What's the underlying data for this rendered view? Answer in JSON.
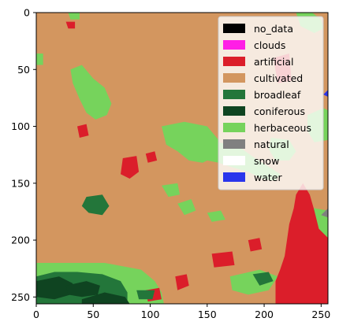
{
  "chart_data": {
    "type": "heatmap",
    "title": "",
    "xlabel": "",
    "ylabel": "",
    "xlim": [
      0,
      256
    ],
    "ylim": [
      256,
      0
    ],
    "x_ticks": [
      0,
      50,
      100,
      150,
      200,
      250
    ],
    "y_ticks": [
      0,
      50,
      100,
      150,
      200,
      250
    ],
    "grid": false,
    "legend_placement": "top-right",
    "background_class": "cultivated",
    "classes": [
      {
        "label": "no_data",
        "color": "#000000"
      },
      {
        "label": "clouds",
        "color": "#ff1ee6"
      },
      {
        "label": "artificial",
        "color": "#db1e2a"
      },
      {
        "label": "cultivated",
        "color": "#d3965f"
      },
      {
        "label": "broadleaf",
        "color": "#23763a"
      },
      {
        "label": "coniferous",
        "color": "#0f4421"
      },
      {
        "label": "herbaceous",
        "color": "#76d35c"
      },
      {
        "label": "natural",
        "color": "#808080"
      },
      {
        "label": "snow",
        "color": "#ffffff"
      },
      {
        "label": "water",
        "color": "#2a35ec"
      }
    ],
    "regions": [
      {
        "class": "herbaceous",
        "points": [
          [
            28,
            0
          ],
          [
            38,
            0
          ],
          [
            38,
            6
          ],
          [
            30,
            6
          ]
        ]
      },
      {
        "class": "herbaceous",
        "points": [
          [
            30,
            50
          ],
          [
            40,
            46
          ],
          [
            50,
            58
          ],
          [
            60,
            66
          ],
          [
            66,
            80
          ],
          [
            62,
            90
          ],
          [
            52,
            94
          ],
          [
            44,
            88
          ],
          [
            38,
            76
          ],
          [
            32,
            62
          ]
        ]
      },
      {
        "class": "herbaceous",
        "points": [
          [
            110,
            100
          ],
          [
            130,
            96
          ],
          [
            150,
            100
          ],
          [
            160,
            112
          ],
          [
            158,
            126
          ],
          [
            146,
            132
          ],
          [
            134,
            130
          ],
          [
            124,
            122
          ],
          [
            114,
            116
          ]
        ]
      },
      {
        "class": "herbaceous",
        "points": [
          [
            140,
            118
          ],
          [
            160,
            114
          ],
          [
            178,
            118
          ],
          [
            192,
            128
          ],
          [
            205,
            136
          ],
          [
            214,
            142
          ],
          [
            210,
            148
          ],
          [
            198,
            146
          ],
          [
            186,
            140
          ],
          [
            172,
            136
          ],
          [
            160,
            132
          ],
          [
            150,
            130
          ],
          [
            142,
            126
          ]
        ]
      },
      {
        "class": "herbaceous",
        "points": [
          [
            206,
            110
          ],
          [
            222,
            112
          ],
          [
            228,
            122
          ],
          [
            222,
            130
          ],
          [
            210,
            130
          ],
          [
            204,
            120
          ]
        ]
      },
      {
        "class": "herbaceous",
        "points": [
          [
            0,
            36
          ],
          [
            6,
            36
          ],
          [
            6,
            46
          ],
          [
            0,
            46
          ]
        ]
      },
      {
        "class": "herbaceous",
        "points": [
          [
            0,
            262
          ],
          [
            256,
            262
          ],
          [
            256,
            263
          ],
          [
            0,
            263
          ]
        ]
      },
      {
        "class": "herbaceous",
        "points": [
          [
            0,
            220
          ],
          [
            60,
            220
          ],
          [
            92,
            226
          ],
          [
            104,
            236
          ],
          [
            110,
            246
          ],
          [
            112,
            256
          ],
          [
            0,
            256
          ]
        ]
      },
      {
        "class": "herbaceous",
        "points": [
          [
            228,
            0
          ],
          [
            242,
            0
          ],
          [
            250,
            6
          ],
          [
            252,
            14
          ],
          [
            244,
            18
          ],
          [
            232,
            12
          ]
        ]
      },
      {
        "class": "herbaceous",
        "points": [
          [
            238,
            90
          ],
          [
            252,
            84
          ],
          [
            256,
            86
          ],
          [
            256,
            112
          ],
          [
            244,
            114
          ],
          [
            238,
            104
          ]
        ]
      },
      {
        "class": "herbaceous",
        "points": [
          [
            226,
            176
          ],
          [
            244,
            172
          ],
          [
            256,
            174
          ],
          [
            256,
            206
          ],
          [
            244,
            210
          ],
          [
            232,
            200
          ],
          [
            226,
            188
          ]
        ]
      },
      {
        "class": "herbaceous",
        "points": [
          [
            170,
            232
          ],
          [
            196,
            226
          ],
          [
            212,
            232
          ],
          [
            204,
            244
          ],
          [
            186,
            248
          ],
          [
            172,
            244
          ]
        ]
      },
      {
        "class": "herbaceous",
        "points": [
          [
            110,
            152
          ],
          [
            124,
            150
          ],
          [
            126,
            160
          ],
          [
            116,
            162
          ]
        ]
      },
      {
        "class": "herbaceous",
        "points": [
          [
            124,
            168
          ],
          [
            136,
            164
          ],
          [
            140,
            174
          ],
          [
            130,
            178
          ]
        ]
      },
      {
        "class": "herbaceous",
        "points": [
          [
            150,
            176
          ],
          [
            162,
            174
          ],
          [
            166,
            182
          ],
          [
            154,
            184
          ]
        ]
      },
      {
        "class": "artificial",
        "points": [
          [
            36,
            100
          ],
          [
            44,
            98
          ],
          [
            46,
            108
          ],
          [
            38,
            110
          ]
        ]
      },
      {
        "class": "artificial",
        "points": [
          [
            26,
            8
          ],
          [
            34,
            8
          ],
          [
            34,
            14
          ],
          [
            28,
            14
          ]
        ]
      },
      {
        "class": "artificial",
        "points": [
          [
            76,
            128
          ],
          [
            88,
            126
          ],
          [
            90,
            140
          ],
          [
            82,
            146
          ],
          [
            74,
            142
          ]
        ]
      },
      {
        "class": "artificial",
        "points": [
          [
            96,
            124
          ],
          [
            104,
            122
          ],
          [
            106,
            130
          ],
          [
            98,
            132
          ]
        ]
      },
      {
        "class": "artificial",
        "points": [
          [
            208,
            40
          ],
          [
            222,
            36
          ],
          [
            224,
            60
          ],
          [
            212,
            62
          ]
        ]
      },
      {
        "class": "artificial",
        "points": [
          [
            154,
            212
          ],
          [
            172,
            210
          ],
          [
            174,
            222
          ],
          [
            156,
            224
          ]
        ]
      },
      {
        "class": "artificial",
        "points": [
          [
            186,
            200
          ],
          [
            196,
            198
          ],
          [
            198,
            208
          ],
          [
            188,
            210
          ]
        ]
      },
      {
        "class": "artificial",
        "points": [
          [
            122,
            232
          ],
          [
            132,
            230
          ],
          [
            134,
            240
          ],
          [
            124,
            244
          ]
        ]
      },
      {
        "class": "artificial",
        "points": [
          [
            96,
            244
          ],
          [
            108,
            242
          ],
          [
            110,
            252
          ],
          [
            98,
            254
          ]
        ]
      },
      {
        "class": "artificial",
        "points": [
          [
            210,
            256
          ],
          [
            210,
            236
          ],
          [
            214,
            226
          ],
          [
            218,
            214
          ],
          [
            220,
            200
          ],
          [
            222,
            186
          ],
          [
            226,
            172
          ],
          [
            228,
            160
          ],
          [
            234,
            150
          ],
          [
            240,
            160
          ],
          [
            244,
            174
          ],
          [
            248,
            190
          ],
          [
            256,
            198
          ],
          [
            256,
            256
          ]
        ]
      },
      {
        "class": "broadleaf",
        "points": [
          [
            44,
            162
          ],
          [
            58,
            160
          ],
          [
            64,
            170
          ],
          [
            58,
            178
          ],
          [
            46,
            176
          ],
          [
            40,
            170
          ]
        ]
      },
      {
        "class": "broadleaf",
        "points": [
          [
            0,
            232
          ],
          [
            16,
            228
          ],
          [
            36,
            228
          ],
          [
            58,
            230
          ],
          [
            74,
            236
          ],
          [
            80,
            246
          ],
          [
            80,
            256
          ],
          [
            0,
            256
          ]
        ]
      },
      {
        "class": "broadleaf",
        "points": [
          [
            190,
            230
          ],
          [
            204,
            228
          ],
          [
            208,
            236
          ],
          [
            196,
            240
          ]
        ]
      },
      {
        "class": "broadleaf",
        "points": [
          [
            88,
            244
          ],
          [
            104,
            244
          ],
          [
            102,
            252
          ],
          [
            90,
            252
          ]
        ]
      },
      {
        "class": "coniferous",
        "points": [
          [
            0,
            236
          ],
          [
            20,
            232
          ],
          [
            32,
            238
          ],
          [
            30,
            248
          ],
          [
            16,
            252
          ],
          [
            0,
            250
          ]
        ]
      },
      {
        "class": "coniferous",
        "points": [
          [
            26,
            240
          ],
          [
            44,
            236
          ],
          [
            56,
            240
          ],
          [
            54,
            248
          ],
          [
            40,
            250
          ],
          [
            28,
            248
          ]
        ]
      },
      {
        "class": "coniferous",
        "points": [
          [
            40,
            252
          ],
          [
            60,
            246
          ],
          [
            78,
            250
          ],
          [
            82,
            256
          ],
          [
            40,
            256
          ]
        ]
      },
      {
        "class": "natural",
        "points": [
          [
            250,
            178
          ],
          [
            256,
            172
          ],
          [
            256,
            180
          ]
        ]
      },
      {
        "class": "water",
        "points": [
          [
            252,
            72
          ],
          [
            256,
            68
          ],
          [
            256,
            74
          ]
        ]
      }
    ]
  }
}
